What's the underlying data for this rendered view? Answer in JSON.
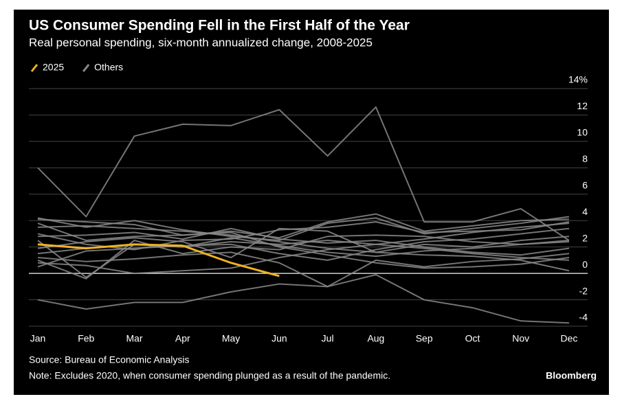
{
  "chart_data": {
    "type": "line",
    "title": "US Consumer Spending Fell in the First Half of the Year",
    "subtitle": "Real personal spending, six-month annualized change, 2008-2025",
    "source": "Source: Bureau of Economic Analysis",
    "note": "Note: Excludes 2020, when consumer spending plunged as a result of the pandemic.",
    "credit": "Bloomberg",
    "categories": [
      "Jan",
      "Feb",
      "Mar",
      "Apr",
      "May",
      "Jun",
      "Jul",
      "Aug",
      "Sep",
      "Oct",
      "Nov",
      "Dec"
    ],
    "ylim": [
      -4,
      14
    ],
    "yticks": [
      {
        "value": 14,
        "label": "14%"
      },
      12,
      10,
      8,
      6,
      4,
      2,
      0,
      -2,
      -4
    ],
    "grid": true,
    "series": [
      {
        "name": "Others",
        "color": "#8a8a8a",
        "values": [
          8.0,
          4.3,
          10.4,
          11.3,
          11.2,
          12.4,
          8.9,
          12.6,
          3.9,
          3.9,
          4.9,
          2.5
        ]
      },
      {
        "name": "Others",
        "color": "#8a8a8a",
        "values": [
          -2.0,
          -2.7,
          -2.2,
          -2.2,
          -1.4,
          -0.8,
          -1.0,
          -0.1,
          -2.0,
          -2.6,
          -3.6,
          -3.75
        ]
      },
      {
        "name": "Others",
        "color": "#8a8a8a",
        "values": [
          4.2,
          3.5,
          4.0,
          3.3,
          2.8,
          2.5,
          3.8,
          4.2,
          3.0,
          3.4,
          3.8,
          4.3
        ]
      },
      {
        "name": "Others",
        "color": "#8a8a8a",
        "values": [
          3.8,
          2.5,
          2.8,
          2.9,
          3.2,
          2.7,
          3.9,
          4.5,
          3.2,
          3.6,
          4.0,
          4.1
        ]
      },
      {
        "name": "Others",
        "color": "#8a8a8a",
        "values": [
          3.0,
          2.2,
          1.8,
          2.5,
          2.6,
          3.3,
          3.5,
          3.9,
          3.1,
          3.2,
          3.3,
          3.9
        ]
      },
      {
        "name": "Others",
        "color": "#8a8a8a",
        "values": [
          2.5,
          -0.3,
          2.2,
          2.0,
          2.4,
          2.2,
          2.5,
          2.2,
          2.6,
          3.1,
          3.5,
          3.8
        ]
      },
      {
        "name": "Others",
        "color": "#8a8a8a",
        "values": [
          1.9,
          2.4,
          2.7,
          2.4,
          1.2,
          3.4,
          3.2,
          1.6,
          2.2,
          2.0,
          2.5,
          2.8
        ]
      },
      {
        "name": "Others",
        "color": "#8a8a8a",
        "values": [
          1.0,
          -0.4,
          2.5,
          1.5,
          2.0,
          1.8,
          2.8,
          2.9,
          2.8,
          2.4,
          2.2,
          2.5
        ]
      },
      {
        "name": "Others",
        "color": "#8a8a8a",
        "values": [
          0.5,
          1.7,
          1.9,
          2.1,
          2.2,
          1.5,
          1.0,
          1.8,
          2.4,
          2.6,
          3.0,
          3.4
        ]
      },
      {
        "name": "Others",
        "color": "#8a8a8a",
        "values": [
          1.5,
          1.9,
          2.2,
          2.0,
          2.7,
          2.1,
          1.6,
          1.3,
          1.7,
          1.9,
          2.2,
          2.4
        ]
      },
      {
        "name": "Others",
        "color": "#8a8a8a",
        "values": [
          2.8,
          2.9,
          3.1,
          2.6,
          3.4,
          2.6,
          2.3,
          2.5,
          2.0,
          1.6,
          1.4,
          1.9
        ]
      },
      {
        "name": "Others",
        "color": "#8a8a8a",
        "values": [
          0.8,
          0.6,
          0.0,
          0.2,
          0.4,
          1.2,
          1.8,
          2.2,
          1.9,
          1.5,
          1.2,
          1.0
        ]
      },
      {
        "name": "Others",
        "color": "#8a8a8a",
        "values": [
          1.2,
          0.9,
          1.1,
          1.4,
          1.6,
          0.8,
          -1.0,
          1.0,
          0.5,
          0.9,
          1.1,
          1.5
        ]
      },
      {
        "name": "Others",
        "color": "#8a8a8a",
        "values": [
          3.5,
          3.6,
          3.4,
          3.2,
          2.9,
          2.4,
          1.9,
          1.6,
          1.4,
          1.3,
          1.0,
          0.2
        ]
      },
      {
        "name": "Others",
        "color": "#8a8a8a",
        "values": [
          4.1,
          3.9,
          3.7,
          2.9,
          3.1,
          2.0,
          1.4,
          0.8,
          0.4,
          0.5,
          0.7,
          1.2
        ]
      },
      {
        "name": "2025",
        "color": "#f0b323",
        "values": [
          2.2,
          1.9,
          2.2,
          2.1,
          0.8,
          -0.2,
          null,
          null,
          null,
          null,
          null,
          null
        ]
      }
    ]
  }
}
